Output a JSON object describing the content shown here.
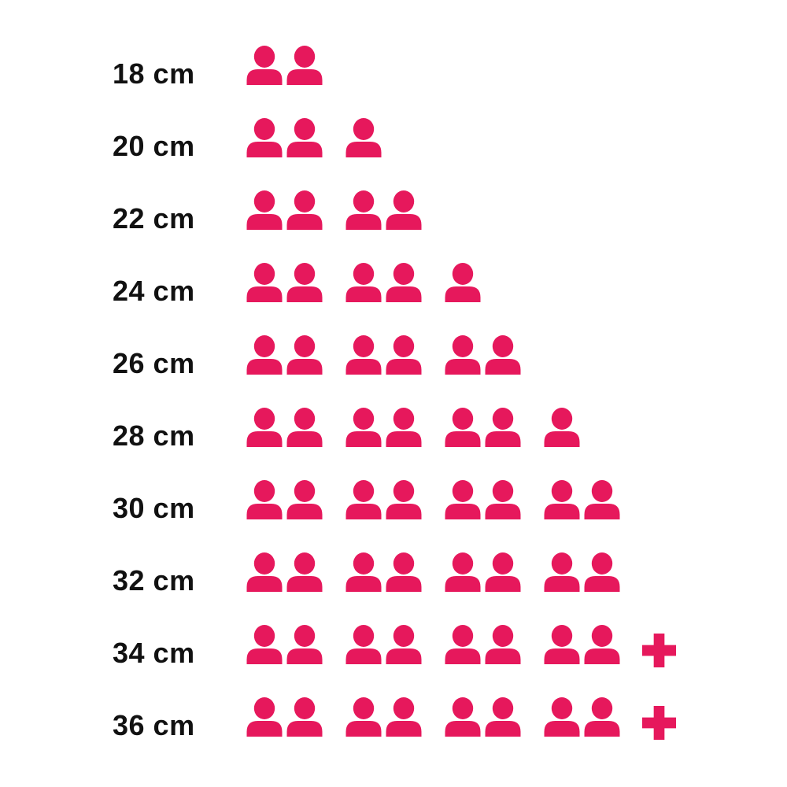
{
  "page": {
    "background": "#ffffff"
  },
  "chart_data": {
    "type": "pictogram",
    "closest_standard_type": "bar",
    "orientation": "horizontal",
    "title": "",
    "xlabel": "",
    "ylabel": "",
    "unit_icon": "person-icon",
    "overflow_icon": "plus-icon",
    "group_size": 2,
    "icon_color": "#E6185C",
    "label_color": "#111111",
    "grid": false,
    "legend": false,
    "categories": [
      "18 cm",
      "20 cm",
      "22 cm",
      "24 cm",
      "26 cm",
      "28 cm",
      "30 cm",
      "32 cm",
      "34 cm",
      "36 cm"
    ],
    "values": [
      2,
      3,
      4,
      5,
      6,
      7,
      8,
      8,
      8,
      8
    ],
    "overflow_plus": [
      false,
      false,
      false,
      false,
      false,
      false,
      false,
      false,
      true,
      true
    ],
    "value_labels": [
      "2",
      "3",
      "4",
      "5",
      "6",
      "7",
      "8",
      "8",
      "8+",
      "8+"
    ]
  }
}
